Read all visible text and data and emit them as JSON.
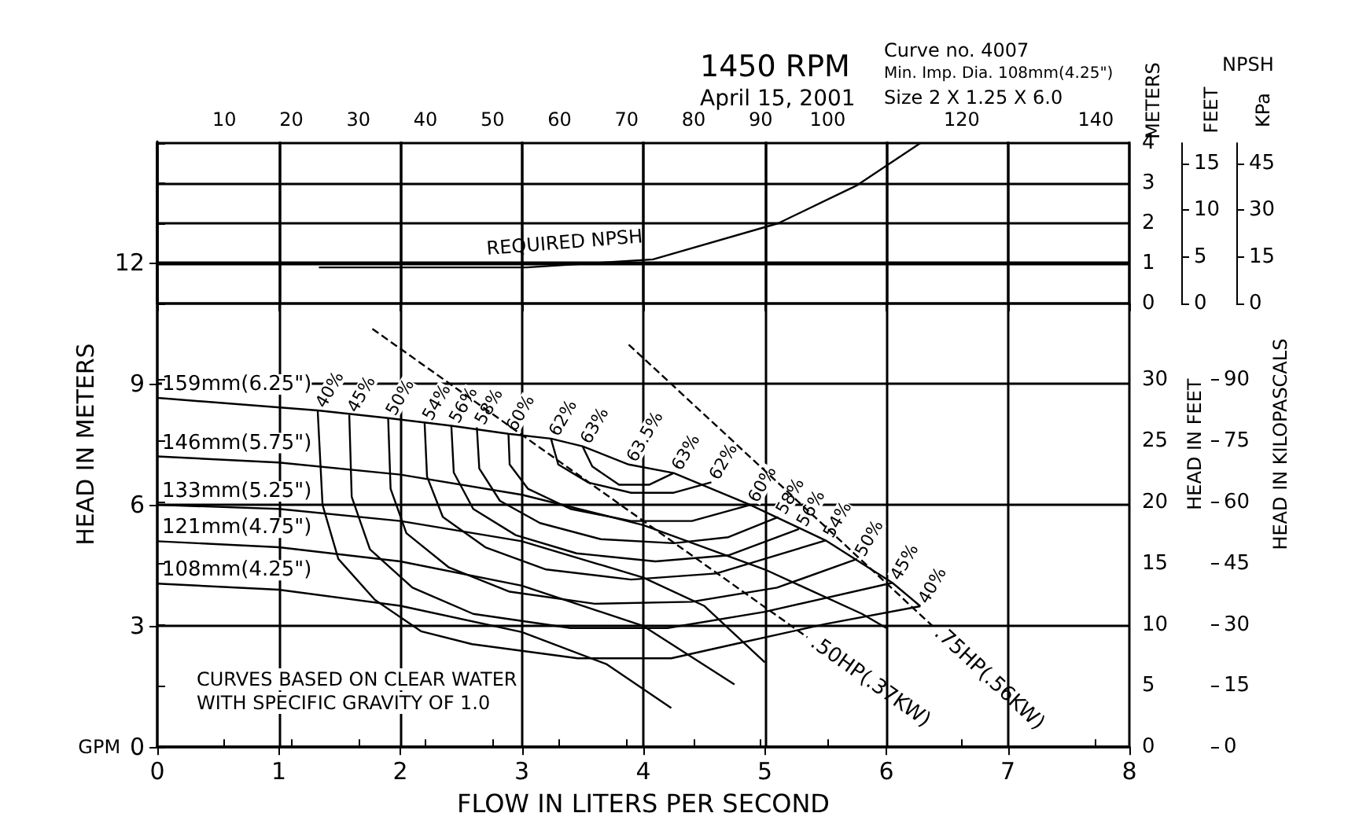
{
  "chart_data": [
    {
      "type": "line",
      "title": "1450 RPM",
      "subtitle": "April 15, 2001",
      "xlabel": "FLOW IN LITERS PER SECOND",
      "ylabel": "HEAD IN METERS",
      "y2label": "HEAD IN FEET",
      "y3label": "HEAD IN KILOPASCALS",
      "x2label": "GPM",
      "xlim": [
        0,
        8
      ],
      "xticks": [
        0,
        1,
        2,
        3,
        4,
        5,
        6,
        7,
        8
      ],
      "ylim": [
        0,
        15
      ],
      "yticks": [
        0,
        3,
        6,
        9,
        12
      ],
      "y2lim": [
        0,
        49.5
      ],
      "y2ticks": [
        0,
        5,
        10,
        15,
        20,
        25,
        30
      ],
      "y3lim": [
        0,
        148.5
      ],
      "y3ticks": [
        0,
        15,
        30,
        45,
        60,
        75,
        90
      ],
      "x2lim": [
        0,
        145
      ],
      "x2ticks": [
        10,
        20,
        30,
        40,
        50,
        60,
        70,
        80,
        90,
        100,
        120,
        140
      ],
      "grid": true,
      "legend": false,
      "marker": "none",
      "line_style": "solid",
      "series": [
        {
          "name": "159mm(6.25\")",
          "color": "#000000",
          "x": [
            0,
            1.32,
            1.9,
            2.42,
            2.89,
            3.24,
            3.5,
            3.88,
            4.25,
            4.88,
            5.5,
            6.05,
            6.28
          ],
          "values": [
            8.65,
            8.34,
            8.15,
            7.96,
            7.76,
            7.64,
            7.45,
            7.0,
            6.79,
            6.0,
            5.12,
            4.07,
            3.49
          ]
        },
        {
          "name": "146mm(5.75\")",
          "color": "#000000",
          "x": [
            0,
            1,
            2,
            3,
            4,
            5,
            5.8,
            6.0
          ],
          "values": [
            7.2,
            7.05,
            6.75,
            6.25,
            5.5,
            4.4,
            3.3,
            2.95
          ]
        },
        {
          "name": "133mm(5.25\")",
          "color": "#000000",
          "x": [
            0,
            1,
            2,
            3,
            4,
            4.5,
            5.0
          ],
          "values": [
            6.0,
            5.9,
            5.6,
            5.1,
            4.2,
            3.5,
            2.1
          ]
        },
        {
          "name": "121mm(4.75\")",
          "color": "#000000",
          "x": [
            0,
            1,
            2,
            3,
            4,
            4.75
          ],
          "values": [
            5.1,
            4.95,
            4.6,
            4.0,
            3.0,
            1.55
          ]
        },
        {
          "name": "108mm(4.25\")",
          "color": "#000000",
          "x": [
            0,
            1,
            2,
            3,
            3.7,
            4.23
          ],
          "values": [
            4.05,
            3.9,
            3.5,
            2.85,
            2.05,
            0.97
          ]
        },
        {
          "color": "#000000",
          "x": [
            1.32,
            1.36,
            1.49,
            1.79,
            2.17,
            2.59,
            3.46,
            4.23,
            4.75,
            5.5,
            6.28
          ],
          "values": [
            8.34,
            6.0,
            4.66,
            3.65,
            2.87,
            2.55,
            2.2,
            2.2,
            2.55,
            3.05,
            3.49
          ]
        },
        {
          "color": "#000000",
          "x": [
            1.58,
            1.6,
            1.75,
            2.1,
            2.6,
            3.4,
            4.2,
            5.0,
            6.05
          ],
          "values": [
            8.23,
            6.2,
            4.9,
            3.95,
            3.3,
            2.95,
            2.95,
            3.35,
            4.07
          ]
        },
        {
          "color": "#000000",
          "x": [
            1.9,
            1.92,
            2.05,
            2.4,
            2.9,
            3.6,
            4.4,
            5.1,
            5.76
          ],
          "values": [
            8.15,
            6.4,
            5.3,
            4.45,
            3.85,
            3.55,
            3.6,
            3.95,
            4.66
          ]
        },
        {
          "color": "#000000",
          "x": [
            2.2,
            2.22,
            2.35,
            2.7,
            3.2,
            3.9,
            4.6,
            5.5
          ],
          "values": [
            8.03,
            6.7,
            5.7,
            4.95,
            4.4,
            4.15,
            4.3,
            5.12
          ]
        },
        {
          "color": "#000000",
          "x": [
            2.42,
            2.44,
            2.6,
            2.95,
            3.45,
            4.1,
            4.7,
            5.28
          ],
          "values": [
            7.96,
            6.8,
            5.9,
            5.25,
            4.8,
            4.6,
            4.75,
            5.4
          ]
        },
        {
          "color": "#000000",
          "x": [
            2.63,
            2.65,
            2.82,
            3.15,
            3.65,
            4.25,
            4.7,
            5.11
          ],
          "values": [
            7.92,
            6.9,
            6.1,
            5.55,
            5.15,
            5.05,
            5.2,
            5.7
          ]
        },
        {
          "color": "#000000",
          "x": [
            2.89,
            2.9,
            3.05,
            3.4,
            3.9,
            4.4,
            4.88
          ],
          "values": [
            7.76,
            7.0,
            6.4,
            5.9,
            5.6,
            5.6,
            6.0
          ]
        },
        {
          "color": "#000000",
          "x": [
            3.24,
            3.3,
            3.55,
            3.9,
            4.25,
            4.56
          ],
          "values": [
            7.64,
            7.0,
            6.55,
            6.3,
            6.3,
            6.56
          ]
        },
        {
          "color": "#000000",
          "x": [
            3.5,
            3.58,
            3.8,
            4.05,
            4.25
          ],
          "values": [
            7.45,
            6.95,
            6.5,
            6.5,
            6.79
          ]
        },
        {
          "name": ".50HP(.37KW)",
          "color": "#000000",
          "line_style": "dashed",
          "x": [
            1.77,
            5.35
          ],
          "values": [
            10.36,
            2.72
          ]
        },
        {
          "name": ".75HP(.56KW)",
          "color": "#000000",
          "line_style": "dashed",
          "x": [
            3.88,
            6.38
          ],
          "values": [
            9.97,
            3.0
          ]
        }
      ],
      "annotations": [
        "Curve no. 4007",
        "Min. Imp. Dia. 108mm(4.25\")",
        "Size 2 X 1.25 X 6.0",
        "CURVES BASED ON CLEAR WATER",
        "WITH SPECIFIC GRAVITY OF 1.0",
        {
          "text": "40%",
          "x": 1.32,
          "y": 8.34
        },
        {
          "text": "45%",
          "x": 1.58,
          "y": 8.23
        },
        {
          "text": "50%",
          "x": 1.9,
          "y": 8.15
        },
        {
          "text": "54%",
          "x": 2.2,
          "y": 8.03
        },
        {
          "text": "56%",
          "x": 2.42,
          "y": 7.96
        },
        {
          "text": "58%",
          "x": 2.63,
          "y": 7.92
        },
        {
          "text": "60%",
          "x": 2.89,
          "y": 7.76
        },
        {
          "text": "62%",
          "x": 3.24,
          "y": 7.64
        },
        {
          "text": "63%",
          "x": 3.5,
          "y": 7.45
        },
        {
          "text": "63.5%",
          "x": 3.88,
          "y": 7.0
        },
        {
          "text": "63%",
          "x": 4.25,
          "y": 6.79
        },
        {
          "text": "62%",
          "x": 4.56,
          "y": 6.56
        },
        {
          "text": "60%",
          "x": 4.88,
          "y": 6.0
        },
        {
          "text": "58%",
          "x": 5.11,
          "y": 5.7
        },
        {
          "text": "56%",
          "x": 5.28,
          "y": 5.4
        },
        {
          "text": "54%",
          "x": 5.5,
          "y": 5.12
        },
        {
          "text": "50%",
          "x": 5.76,
          "y": 4.66
        },
        {
          "text": "45%",
          "x": 6.05,
          "y": 4.07
        },
        {
          "text": "40%",
          "x": 6.28,
          "y": 3.49
        }
      ]
    },
    {
      "type": "line",
      "title": "NPSH",
      "ylabel": "METERS",
      "y2label": "FEET",
      "y3label": "KPa",
      "xlim": [
        0,
        8
      ],
      "xticks": [
        0,
        1,
        2,
        3,
        4,
        5,
        6,
        7,
        8
      ],
      "ylim": [
        0,
        4
      ],
      "yticks": [
        0,
        1,
        2,
        3,
        4
      ],
      "y2lim": [
        0,
        17.2
      ],
      "y2ticks": [
        0,
        5,
        10,
        15
      ],
      "y3lim": [
        0,
        51.6
      ],
      "y3ticks": [
        0,
        15,
        30,
        45
      ],
      "tick_labels": "y",
      "grid": true,
      "legend": false,
      "marker": "none",
      "line_style": "solid",
      "series": [
        {
          "name": "REQUIRED NPSH",
          "color": "#000000",
          "x": [
            1.33,
            3.04,
            4.08,
            5.11,
            5.76,
            6.28
          ],
          "values": [
            0.9,
            0.9,
            1.1,
            2.0,
            2.95,
            4.0
          ]
        }
      ]
    }
  ]
}
